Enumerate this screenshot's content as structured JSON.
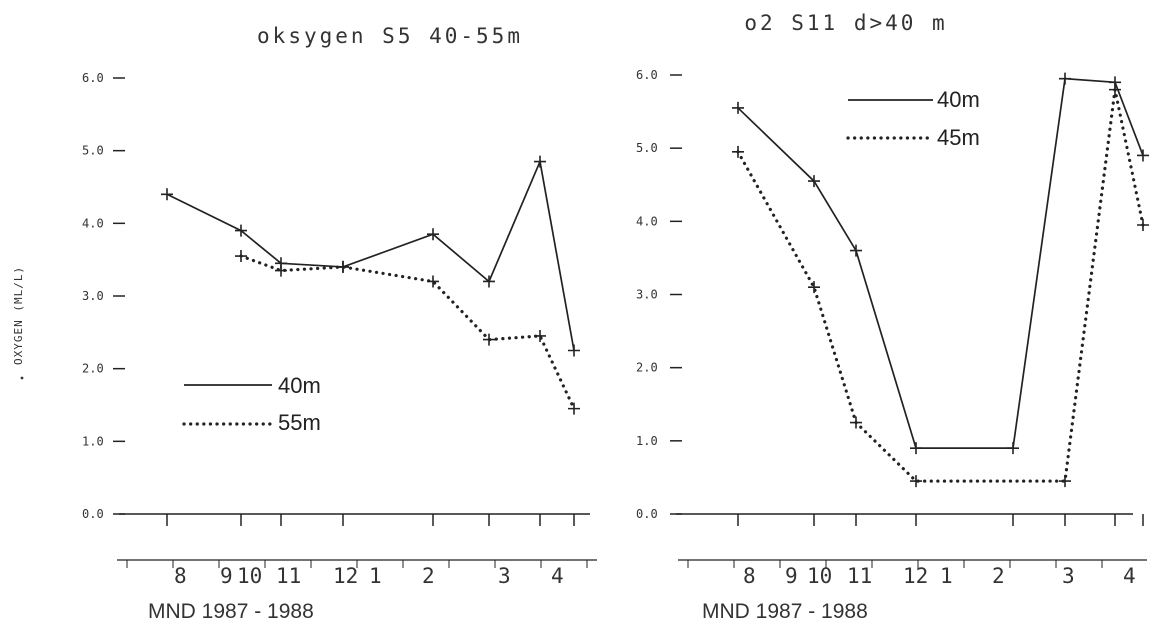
{
  "chart_data": [
    {
      "type": "line",
      "title": "oksygen S5 40-55m",
      "ylabel": "OXYGEN (ML/L)",
      "xlabel": "MND 1987 - 1988",
      "ylim": [
        0,
        6
      ],
      "y_ticks": [
        "0.0",
        "1.0",
        "2.0",
        "3.0",
        "4.0",
        "5.0",
        "6.0"
      ],
      "month_ticks": [
        "8",
        "9",
        "10",
        "11",
        "12",
        "1",
        "2",
        "3",
        "4"
      ],
      "grid": false,
      "legend_position": "left",
      "series": [
        {
          "name": "40m",
          "style": "solid",
          "x": [
            8.0,
            9.0,
            9.5,
            10.3,
            11.3,
            12.0,
            12.5,
            13.2
          ],
          "y": [
            4.4,
            3.9,
            3.45,
            3.4,
            3.85,
            3.2,
            4.85,
            2.25
          ]
        },
        {
          "name": "55m",
          "style": "dotted",
          "x": [
            9.0,
            9.5,
            10.3,
            11.3,
            12.0,
            12.5,
            13.2
          ],
          "y": [
            3.55,
            3.35,
            3.4,
            3.2,
            2.4,
            2.45,
            1.45
          ]
        }
      ]
    },
    {
      "type": "line",
      "title": "o2 S11 d>40 m",
      "xlabel": "MND 1987 - 1988",
      "ylim": [
        0,
        6
      ],
      "y_ticks": [
        "0.0",
        "1.0",
        "2.0",
        "3.0",
        "4.0",
        "5.0",
        "6.0"
      ],
      "month_ticks": [
        "8",
        "9",
        "10",
        "11",
        "12",
        "1",
        "2",
        "3",
        "4"
      ],
      "grid": false,
      "legend_position": "top-center",
      "series": [
        {
          "name": "40m",
          "style": "solid",
          "x": [
            8.0,
            9.0,
            9.5,
            10.3,
            11.3,
            12.0,
            12.5,
            12.85
          ],
          "y": [
            5.55,
            4.55,
            3.6,
            0.9,
            0.9,
            5.95,
            5.9,
            4.9
          ]
        },
        {
          "name": "45m",
          "style": "dotted",
          "x": [
            8.0,
            9.0,
            9.5,
            10.3,
            12.0,
            12.5,
            12.85
          ],
          "y": [
            4.95,
            3.1,
            1.25,
            0.45,
            0.45,
            5.8,
            3.95
          ]
        }
      ]
    }
  ]
}
